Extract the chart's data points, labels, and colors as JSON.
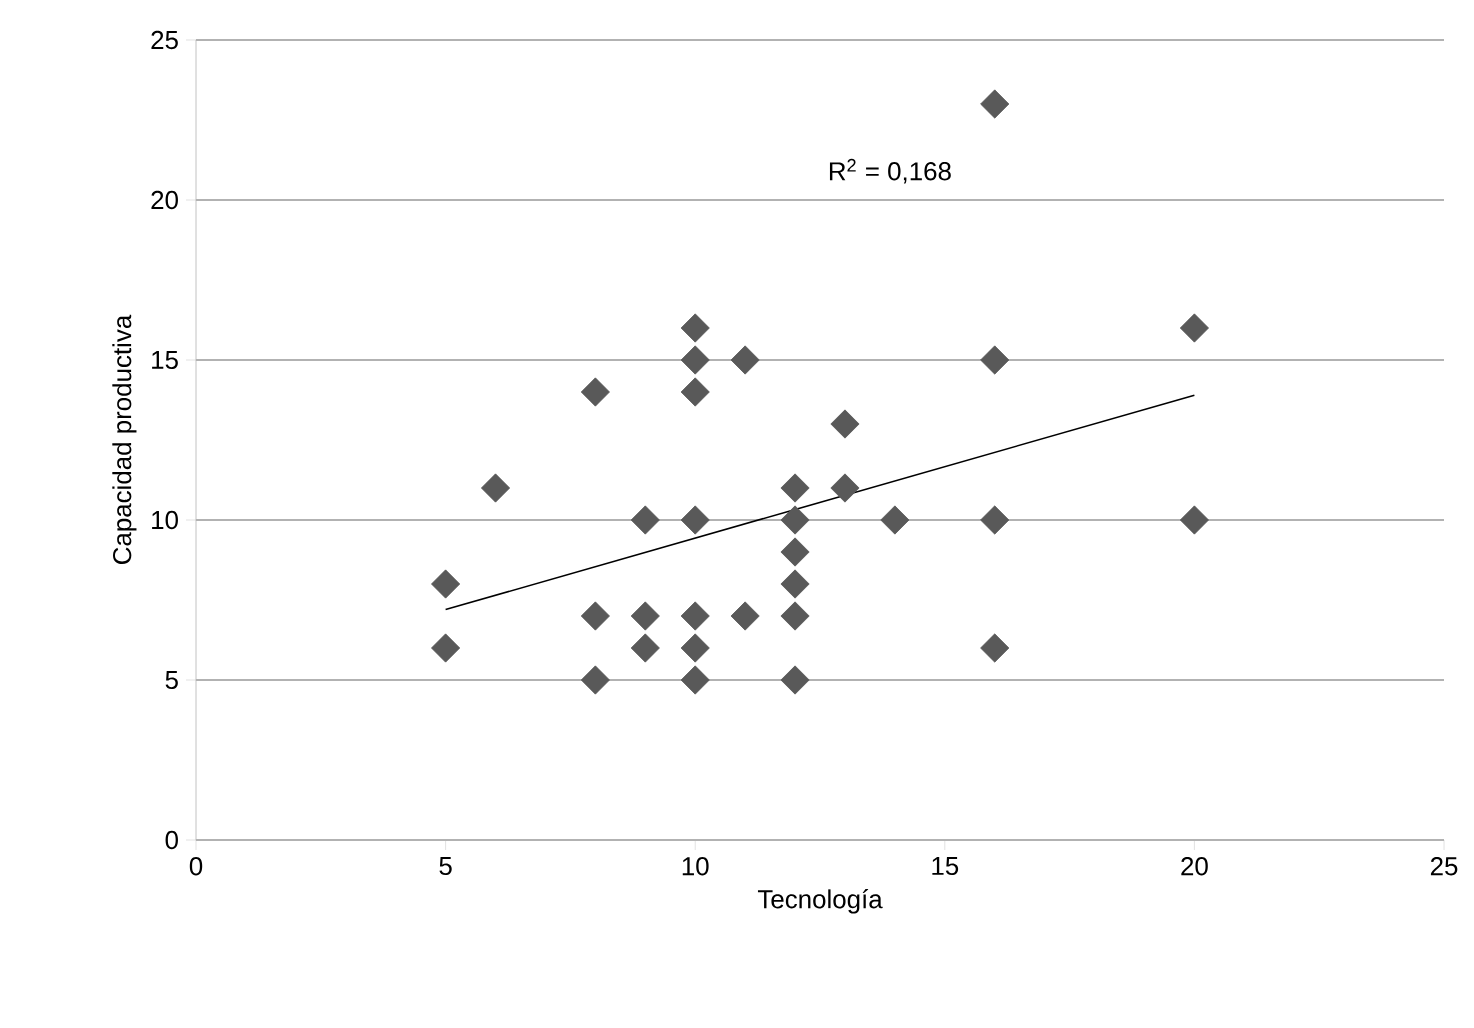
{
  "chart_data": {
    "type": "scatter",
    "xlabel": "Tecnología",
    "ylabel": "Capacidad productiva",
    "annotations": [
      "R$^{2}$ = 0,168"
    ],
    "xlim": [
      0,
      25
    ],
    "xticks": [
      0,
      5,
      10,
      15,
      20,
      25
    ],
    "ylim": [
      0,
      25
    ],
    "yticks": [
      0,
      5,
      10,
      15,
      20,
      25
    ],
    "grid": "y",
    "marker": "diamond",
    "series": [
      {
        "color": "#595959",
        "x": [
          5,
          5,
          6,
          8,
          8,
          8,
          9,
          9,
          9,
          10,
          10,
          10,
          10,
          10,
          10,
          10,
          11,
          11,
          12,
          12,
          12,
          12,
          12,
          12,
          13,
          13,
          14,
          16,
          16,
          16,
          16,
          20,
          20
        ],
        "values": [
          8,
          6,
          11,
          14,
          7,
          5,
          10,
          7,
          6,
          16,
          15,
          14,
          10,
          7,
          6,
          5,
          15,
          7,
          11,
          10,
          9,
          8,
          7,
          5,
          13,
          11,
          10,
          23,
          15,
          10,
          6,
          16,
          10
        ]
      },
      {
        "type": "line",
        "color": "#000000",
        "marker": "none",
        "x": [
          5,
          20
        ],
        "values": [
          7.2,
          13.9
        ]
      }
    ]
  }
}
